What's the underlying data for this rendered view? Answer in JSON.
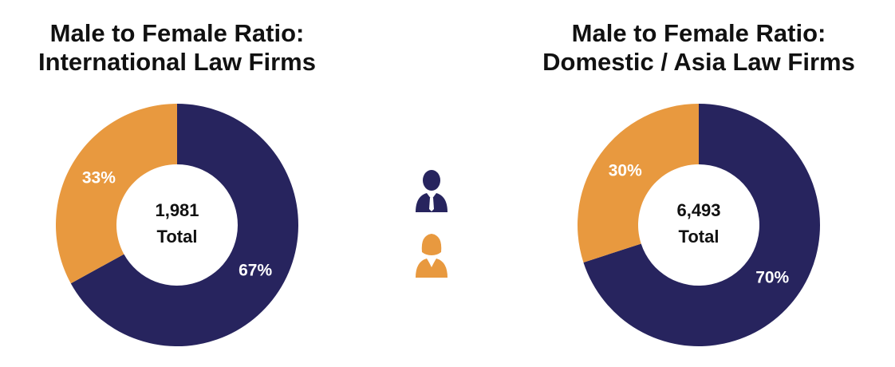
{
  "chart_data": [
    {
      "type": "donut",
      "title": [
        "Male to Female Ratio:",
        "International Law Firms"
      ],
      "values": [
        67,
        33
      ],
      "value_labels": [
        "67%",
        "33%"
      ],
      "colors": [
        "#27245e",
        "#e8993f"
      ],
      "center_text": [
        "1,981",
        "Total"
      ]
    },
    {
      "type": "donut",
      "title": [
        "Male to Female Ratio:",
        "Domestic / Asia Law Firms"
      ],
      "values": [
        70,
        30
      ],
      "value_labels": [
        "70%",
        "30%"
      ],
      "colors": [
        "#27245e",
        "#e8993f"
      ],
      "center_text": [
        "6,493",
        "Total"
      ]
    }
  ]
}
